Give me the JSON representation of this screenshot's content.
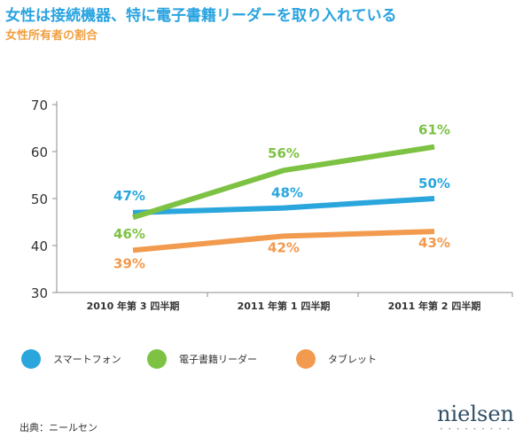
{
  "header": {
    "title": "女性は接続機器、特に電子書籍リーダーを取り入れている",
    "subtitle": "女性所有者の割合"
  },
  "colors": {
    "title": "#29a3e0",
    "subtitle": "#f0a040",
    "smartphone": "#2aa6dd",
    "ereader": "#7dc243",
    "tablet": "#f29a4e"
  },
  "chart_data": {
    "type": "line",
    "categories": [
      "2010 年第 3 四半期",
      "2011 年第 1 四半期",
      "2011 年第 2 四半期"
    ],
    "ylim": [
      30,
      70
    ],
    "yticks": [
      30,
      40,
      50,
      60,
      70
    ],
    "grid": false,
    "legend_position": "bottom",
    "series": [
      {
        "name": "スマートフォン",
        "values": [
          47,
          48,
          50
        ],
        "labels": [
          "47%",
          "48%",
          "50%"
        ],
        "color": "#2aa6dd"
      },
      {
        "name": "電子書籍リーダー",
        "values": [
          46,
          56,
          61
        ],
        "labels": [
          "46%",
          "56%",
          "61%"
        ],
        "color": "#7dc243"
      },
      {
        "name": "タブレット",
        "values": [
          39,
          42,
          43
        ],
        "labels": [
          "39%",
          "42%",
          "43%"
        ],
        "color": "#f29a4e"
      }
    ]
  },
  "footer": {
    "source": "出典：ニールセン",
    "logo": "nielsen",
    "logo_dots": "• • • • • • • • •"
  }
}
